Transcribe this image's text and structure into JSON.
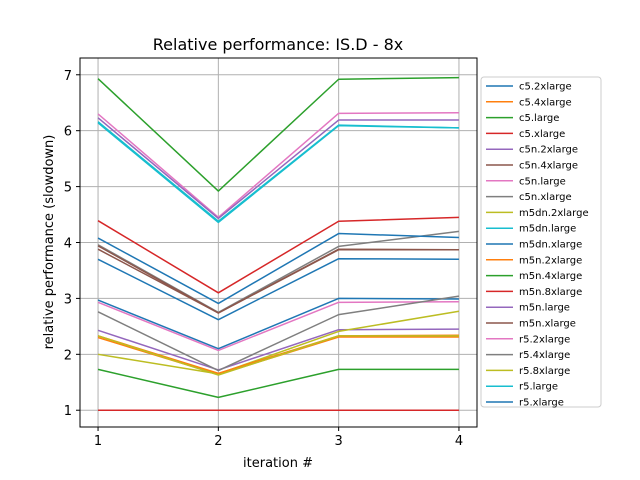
{
  "chart_data": {
    "type": "line",
    "title": "Relative performance: IS.D - 8x",
    "xlabel": "iteration #",
    "ylabel": "relative performance (slowdown)",
    "x": [
      1,
      2,
      3,
      4
    ],
    "xlim": [
      0.85,
      4.15
    ],
    "ylim": [
      0.7,
      7.3
    ],
    "xticks": [
      "1",
      "2",
      "3",
      "4"
    ],
    "yticks": [
      "1",
      "2",
      "3",
      "4",
      "5",
      "6",
      "7"
    ],
    "grid": true,
    "legend_position": "right",
    "series": [
      {
        "name": "c5.2xlarge",
        "color": "#1f77b4",
        "values": [
          2.97,
          2.1,
          3.0,
          2.99
        ]
      },
      {
        "name": "c5.4xlarge",
        "color": "#ff7f0e",
        "values": [
          2.3,
          1.64,
          2.31,
          2.31
        ]
      },
      {
        "name": "c5.large",
        "color": "#2ca02c",
        "values": [
          6.93,
          4.92,
          6.92,
          6.95
        ]
      },
      {
        "name": "c5.xlarge",
        "color": "#d62728",
        "values": [
          4.39,
          3.1,
          4.38,
          4.45
        ]
      },
      {
        "name": "c5n.2xlarge",
        "color": "#9467bd",
        "values": [
          2.43,
          1.72,
          2.44,
          2.45
        ]
      },
      {
        "name": "c5n.4xlarge",
        "color": "#8c564b",
        "values": [
          3.88,
          2.74,
          3.87,
          3.87
        ]
      },
      {
        "name": "c5n.large",
        "color": "#e377c2",
        "values": [
          6.3,
          4.45,
          6.31,
          6.32
        ]
      },
      {
        "name": "c5n.xlarge",
        "color": "#7f7f7f",
        "values": [
          3.96,
          2.75,
          3.93,
          4.2
        ]
      },
      {
        "name": "m5dn.2xlarge",
        "color": "#bcbd22",
        "values": [
          2.0,
          1.65,
          2.41,
          2.77
        ]
      },
      {
        "name": "m5dn.large",
        "color": "#17becf",
        "values": [
          6.14,
          4.36,
          6.09,
          6.05
        ]
      },
      {
        "name": "m5dn.xlarge",
        "color": "#1f77b4",
        "values": [
          4.08,
          2.91,
          4.16,
          4.09
        ]
      },
      {
        "name": "m5n.2xlarge",
        "color": "#ff7f0e",
        "values": [
          2.33,
          1.66,
          2.33,
          2.34
        ]
      },
      {
        "name": "m5n.4xlarge",
        "color": "#2ca02c",
        "values": [
          1.73,
          1.23,
          1.73,
          1.73
        ]
      },
      {
        "name": "m5n.8xlarge",
        "color": "#d62728",
        "values": [
          1.0,
          1.0,
          1.0,
          1.0
        ]
      },
      {
        "name": "m5n.large",
        "color": "#9467bd",
        "values": [
          6.23,
          4.43,
          6.19,
          6.19
        ]
      },
      {
        "name": "m5n.xlarge",
        "color": "#8c564b",
        "values": [
          3.94,
          2.74,
          3.88,
          3.87
        ]
      },
      {
        "name": "r5.2xlarge",
        "color": "#e377c2",
        "values": [
          2.93,
          2.07,
          2.93,
          2.94
        ]
      },
      {
        "name": "r5.4xlarge",
        "color": "#7f7f7f",
        "values": [
          2.76,
          1.71,
          2.71,
          3.04
        ]
      },
      {
        "name": "r5.8xlarge",
        "color": "#bcbd22",
        "values": [
          2.33,
          1.63,
          2.33,
          2.33
        ]
      },
      {
        "name": "r5.large",
        "color": "#17becf",
        "values": [
          6.16,
          4.38,
          6.1,
          6.05
        ]
      },
      {
        "name": "r5.xlarge",
        "color": "#1f77b4",
        "values": [
          3.7,
          2.62,
          3.71,
          3.7
        ]
      }
    ]
  }
}
